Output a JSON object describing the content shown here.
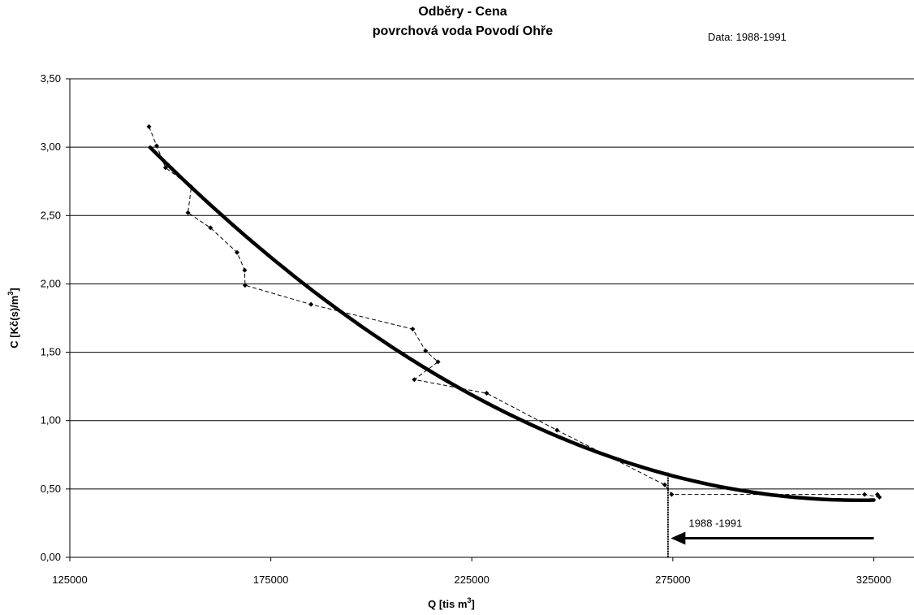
{
  "chart_data": {
    "type": "line",
    "title": "Odběry  - Cena",
    "subtitle": "povrchová voda Povodí Ohře",
    "data_note": "Data: 1988-1991",
    "xlabel": "Q [tis m",
    "xlabel_sup": "3",
    "xlabel_end": "]",
    "ylabel": "C [Kč(s)/m",
    "ylabel_sup": "3",
    "ylabel_end": "]",
    "xlim": [
      125000,
      335000
    ],
    "ylim": [
      0,
      3.5
    ],
    "x_ticks": [
      125000,
      175000,
      225000,
      275000,
      325000
    ],
    "x_tick_labels": [
      "125000",
      "175000",
      "225000",
      "275000",
      "325000"
    ],
    "y_ticks": [
      0,
      0.5,
      1,
      1.5,
      2,
      2.5,
      3,
      3.5
    ],
    "y_tick_labels": [
      "0,00",
      "0,50",
      "1,00",
      "1,50",
      "2,00",
      "2,50",
      "3,00",
      "3,50"
    ],
    "grid": "horizontal",
    "series": [
      {
        "style": "dashed-markers",
        "x": [
          144700,
          146600,
          148800,
          155200,
          154400,
          160000,
          166600,
          168500,
          168600,
          185000,
          210300,
          213500,
          216600,
          210700,
          228700,
          246200,
          273000,
          274700,
          322700,
          326400,
          325900
        ],
        "y": [
          3.15,
          3.01,
          2.85,
          2.71,
          2.52,
          2.41,
          2.23,
          2.1,
          1.99,
          1.85,
          1.67,
          1.51,
          1.43,
          1.3,
          1.2,
          0.93,
          0.53,
          0.46,
          0.46,
          0.44,
          0.46
        ]
      },
      {
        "style": "trend-thick",
        "curve": "quadratic",
        "x": [
          145000,
          165000,
          185000,
          205000,
          225000,
          245000,
          265000,
          285000,
          305000,
          325000
        ],
        "y": [
          2.94,
          2.48,
          2.01,
          1.57,
          1.18,
          0.87,
          0.65,
          0.51,
          0.45,
          0.44
        ]
      }
    ],
    "annotations": {
      "vline_x": 273800,
      "arrow_label": "1988 -1991",
      "arrow_from_x": 325000,
      "arrow_to_x": 274500,
      "arrow_y": 0.14
    }
  }
}
